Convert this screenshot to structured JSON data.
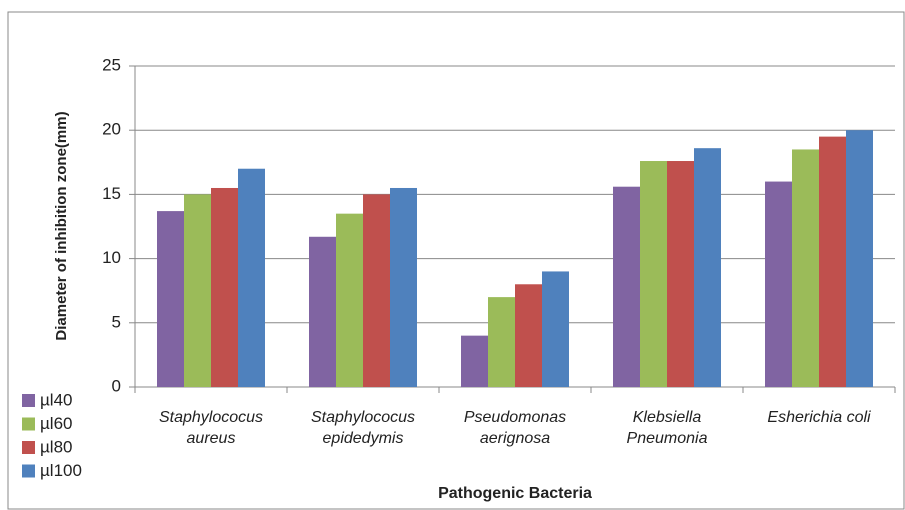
{
  "chart_data": {
    "type": "bar",
    "xlabel": "Pathogenic Bacteria",
    "ylabel": "Diameter of inhibition zone(mm)",
    "categories": [
      "Staphylococus aureus",
      "Staphylococus epidedymis",
      "Pseudomonas aerignosa",
      "Klebsiella Pneumonia",
      "Esherichia coli"
    ],
    "series": [
      {
        "name": "µl40",
        "color": "#8064a2",
        "values": [
          13.7,
          11.7,
          4,
          15.6,
          16
        ]
      },
      {
        "name": "µl60",
        "color": "#9bbb59",
        "values": [
          15,
          13.5,
          7,
          17.6,
          18.5
        ]
      },
      {
        "name": "µl80",
        "color": "#c0504d",
        "values": [
          15.5,
          15,
          8,
          17.6,
          19.5
        ]
      },
      {
        "name": "µl100",
        "color": "#4f81bd",
        "values": [
          17,
          15.5,
          9,
          18.6,
          20
        ]
      }
    ],
    "ylim": [
      0,
      25
    ],
    "yticks": [
      0,
      5,
      10,
      15,
      20,
      25
    ],
    "grid": true,
    "legend": "bottom-left"
  }
}
